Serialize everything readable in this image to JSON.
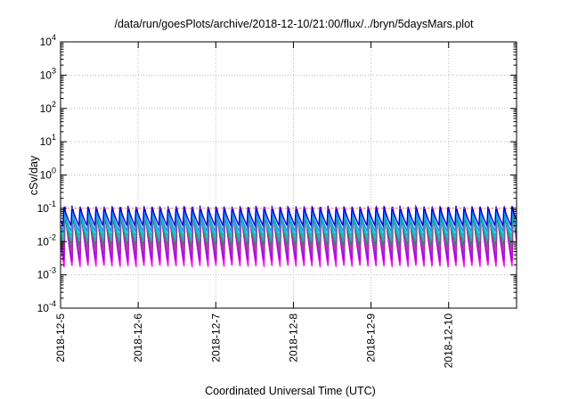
{
  "chart_data": {
    "type": "line",
    "title": "/data/run/goesPlots/archive/2018-12-10/21:00/flux/../bryn/5daysMars.plot",
    "xlabel": "Coordinated Universal Time (UTC)",
    "ylabel": "cSv/day",
    "x_tick_labels": [
      "2018-12-5",
      "2018-12-6",
      "2018-12-7",
      "2018-12-8",
      "2018-12-9",
      "2018-12-10"
    ],
    "x_range": [
      "2018-12-05T00:00",
      "2018-12-10T21:00"
    ],
    "y_scale": "log",
    "ylim": [
      0.0001,
      10000
    ],
    "y_tick_labels": [
      {
        "base": "10",
        "exp": "4"
      },
      {
        "base": "10",
        "exp": "3"
      },
      {
        "base": "10",
        "exp": "2"
      },
      {
        "base": "10",
        "exp": "1"
      },
      {
        "base": "10",
        "exp": "0"
      },
      {
        "base": "10",
        "exp": "-1"
      },
      {
        "base": "10",
        "exp": "-2"
      },
      {
        "base": "10",
        "exp": "-3"
      },
      {
        "base": "10",
        "exp": "-4"
      }
    ],
    "grid": true,
    "reference_line": {
      "y": 0.1,
      "color": "#ff6b6b"
    },
    "oscillation": {
      "cycles": 57
    },
    "series": [
      {
        "peak": 0.115,
        "trough": 0.0017,
        "color": "#ff00ff"
      },
      {
        "peak": 0.11,
        "trough": 0.0025,
        "color": "#b000c0"
      },
      {
        "peak": 0.105,
        "trough": 0.0035,
        "color": "#8a2be2"
      },
      {
        "peak": 0.1,
        "trough": 0.005,
        "color": "#d03090"
      },
      {
        "peak": 0.095,
        "trough": 0.007,
        "color": "#2e8b57"
      },
      {
        "peak": 0.09,
        "trough": 0.01,
        "color": "#20b2aa"
      },
      {
        "peak": 0.085,
        "trough": 0.014,
        "color": "#00c8c8"
      },
      {
        "peak": 0.09,
        "trough": 0.02,
        "color": "#1e90ff"
      },
      {
        "peak": 0.12,
        "trough": 0.03,
        "color": "#0000cd"
      }
    ]
  }
}
